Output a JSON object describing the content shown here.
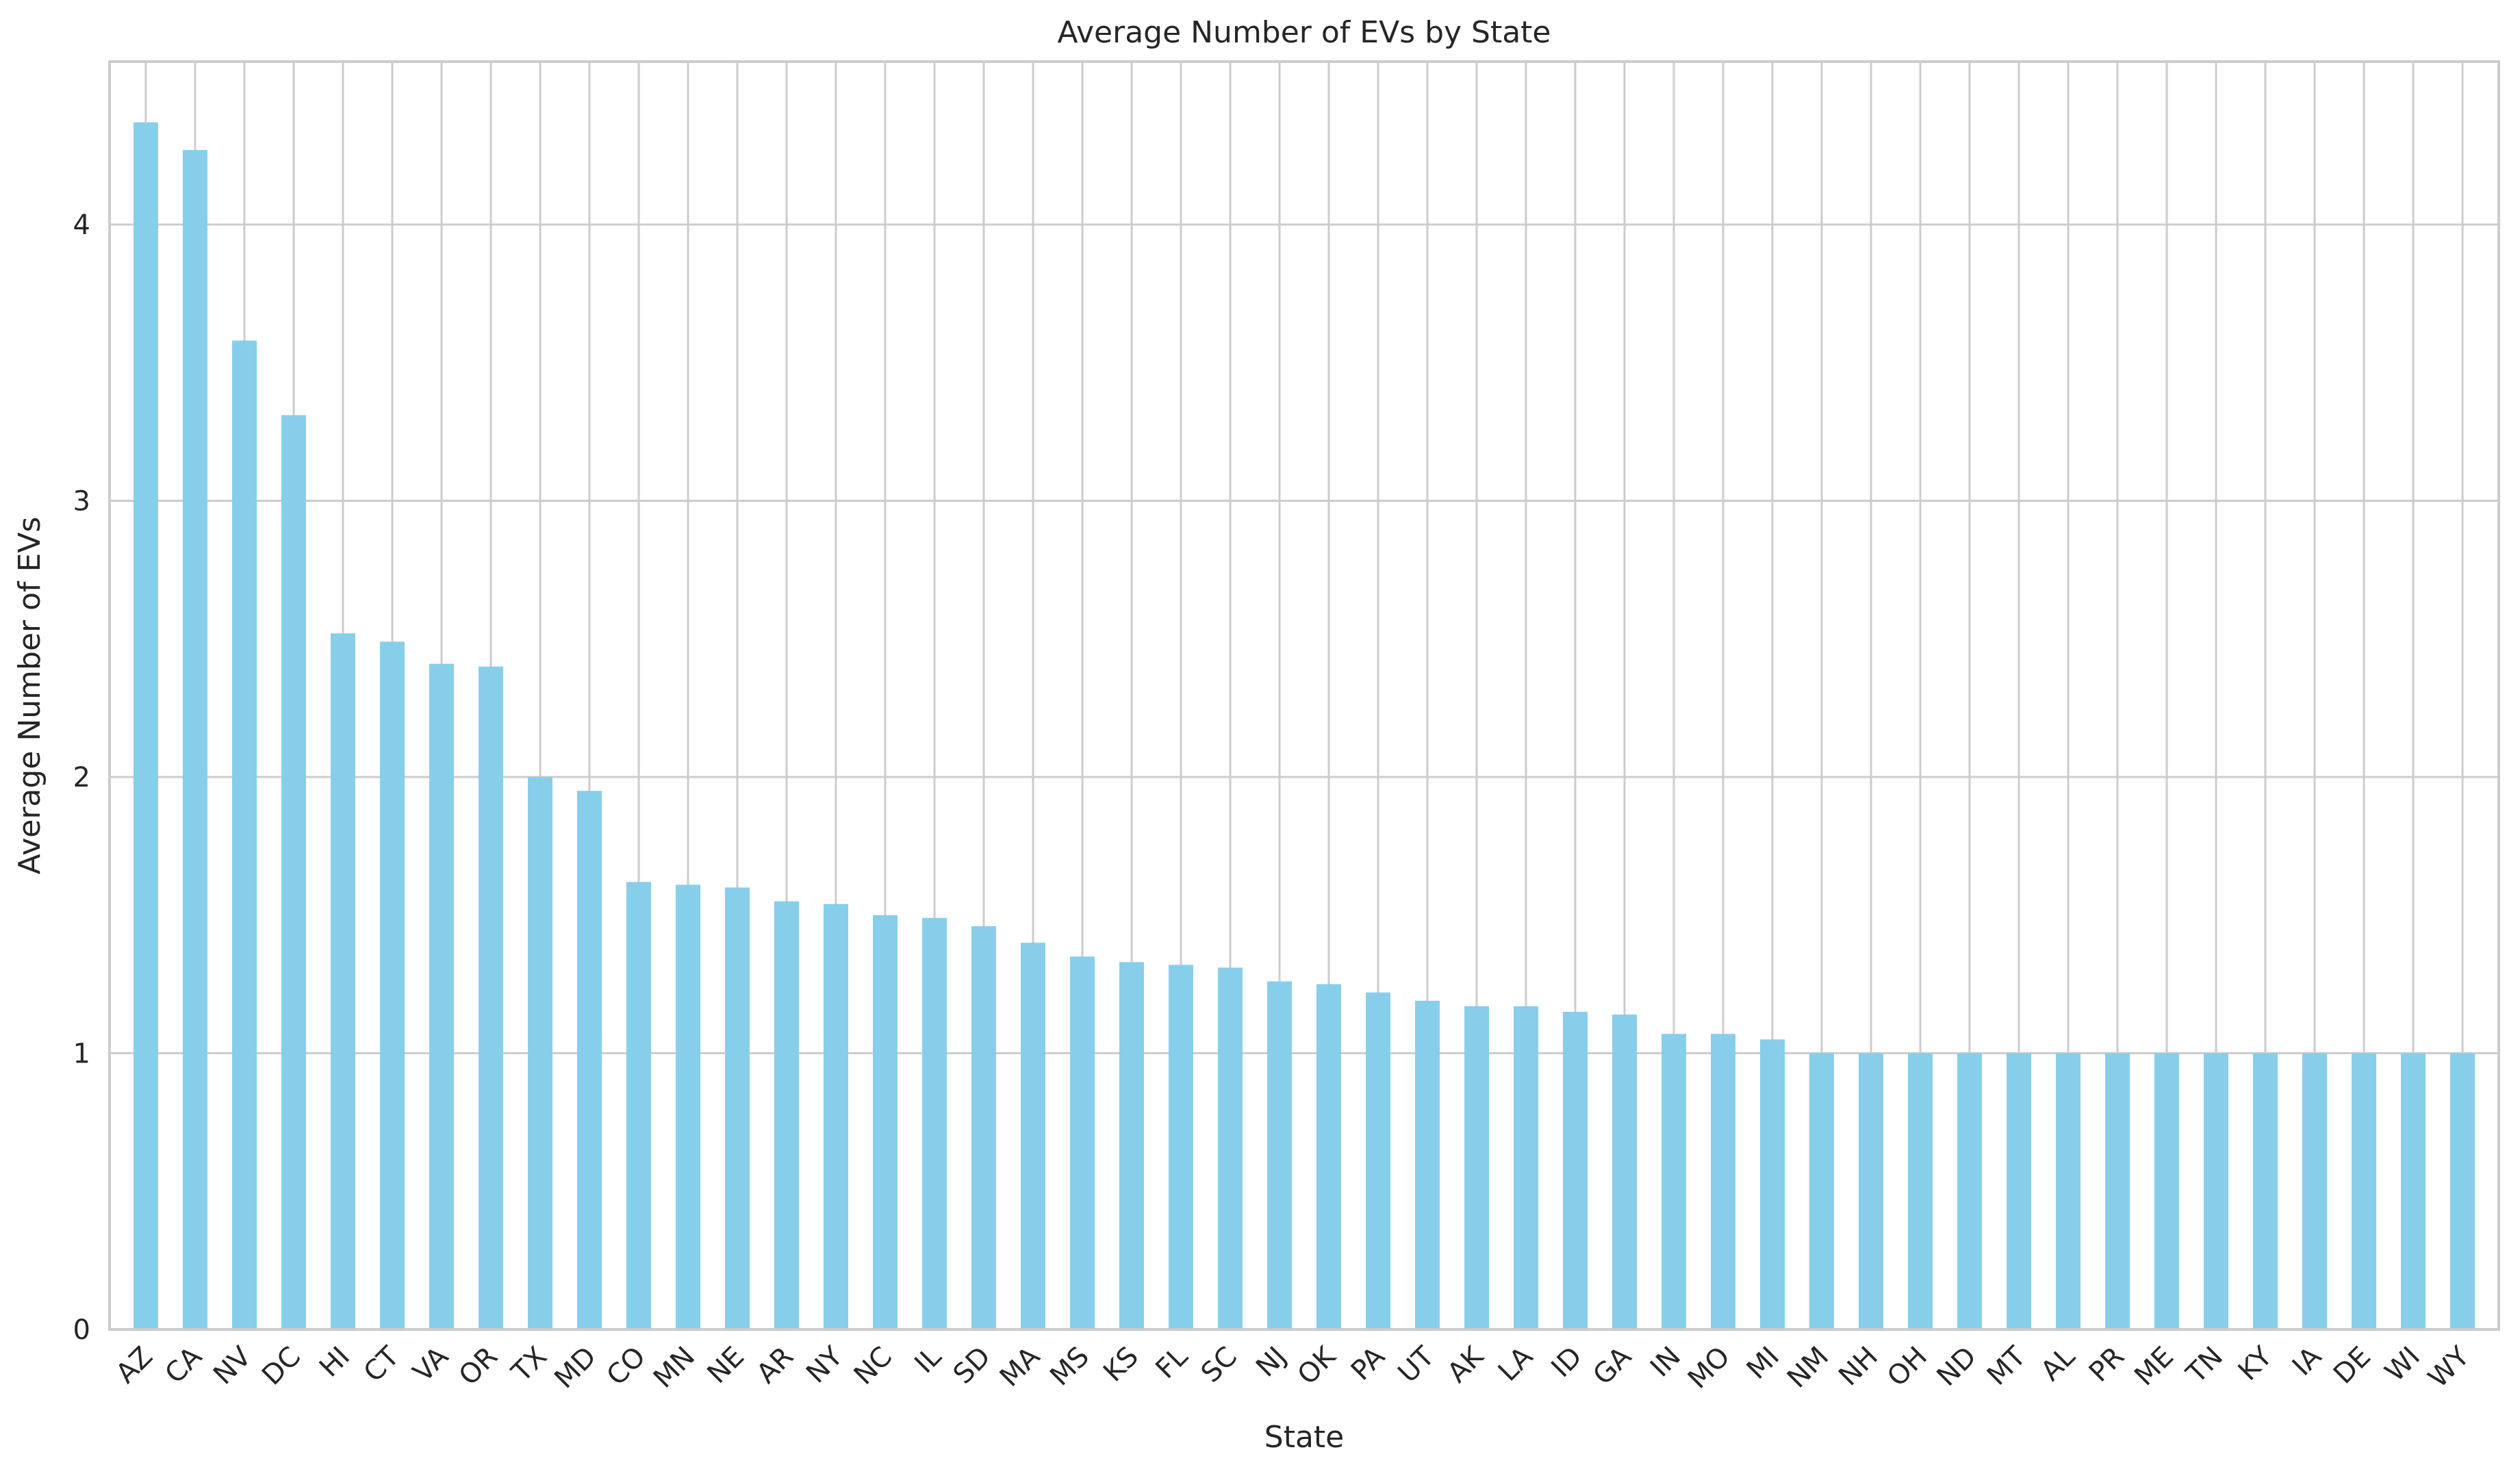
{
  "chart_data": {
    "type": "bar",
    "title": "Average Number of EVs by State",
    "xlabel": "State",
    "ylabel": "Average Number of EVs",
    "categories": [
      "AZ",
      "CA",
      "NV",
      "DC",
      "HI",
      "CT",
      "VA",
      "OR",
      "TX",
      "MD",
      "CO",
      "MN",
      "NE",
      "AR",
      "NY",
      "NC",
      "IL",
      "SD",
      "MA",
      "MS",
      "KS",
      "FL",
      "SC",
      "NJ",
      "OK",
      "PA",
      "UT",
      "AK",
      "LA",
      "ID",
      "GA",
      "IN",
      "MO",
      "MI",
      "NM",
      "NH",
      "OH",
      "ND",
      "MT",
      "AL",
      "PR",
      "ME",
      "TN",
      "KY",
      "IA",
      "DE",
      "WI",
      "WY"
    ],
    "values": [
      4.37,
      4.27,
      3.58,
      3.31,
      2.52,
      2.49,
      2.41,
      2.4,
      2.0,
      1.95,
      1.62,
      1.61,
      1.6,
      1.55,
      1.54,
      1.5,
      1.49,
      1.46,
      1.4,
      1.35,
      1.33,
      1.32,
      1.31,
      1.26,
      1.25,
      1.22,
      1.19,
      1.17,
      1.17,
      1.15,
      1.14,
      1.07,
      1.07,
      1.05,
      1.0,
      1.0,
      1.0,
      1.0,
      1.0,
      1.0,
      1.0,
      1.0,
      1.0,
      1.0,
      1.0,
      1.0,
      1.0,
      1.0
    ],
    "yticks": [
      0,
      1,
      2,
      3,
      4
    ],
    "ylim": [
      0,
      4.59
    ],
    "grid": true,
    "bar_color": "#87ceeb",
    "grid_color": "#cccccc",
    "tick_rotation": 45
  }
}
